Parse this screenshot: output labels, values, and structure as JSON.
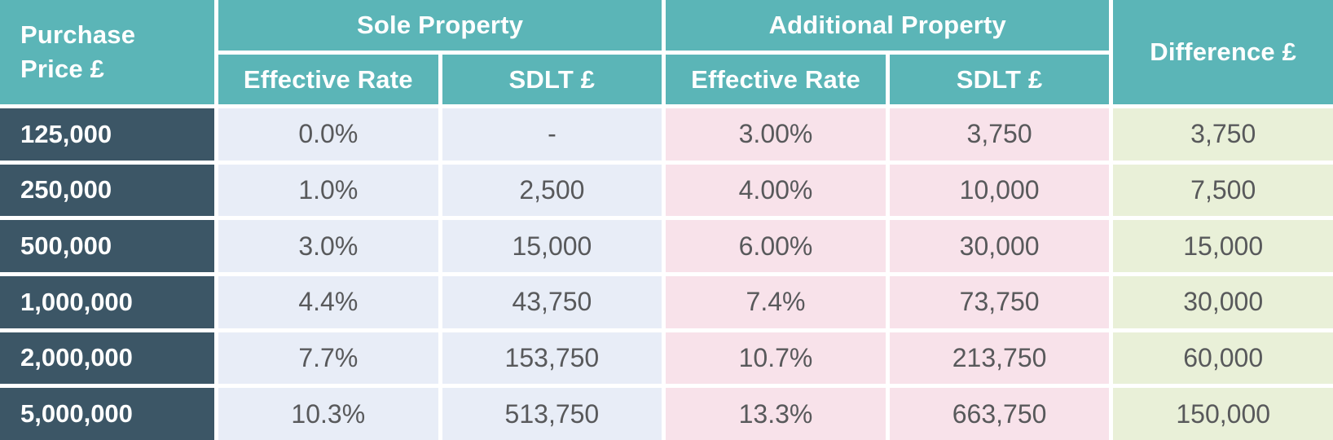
{
  "colors": {
    "header_teal": "#5bb5b7",
    "price_column_dark": "#3c5666",
    "sole_property_bg": "#e8edf7",
    "additional_property_bg": "#f8e2ea",
    "difference_bg": "#e9f0d8",
    "grid_lines": "#ffffff",
    "header_text": "#ffffff",
    "data_text": "#58595b"
  },
  "chart_data": {
    "type": "table",
    "header": {
      "purchase_price": "Purchase\nPrice £",
      "groups": [
        {
          "label": "Sole Property",
          "sub": [
            "Effective Rate",
            "SDLT £"
          ]
        },
        {
          "label": "Additional Property",
          "sub": [
            "Effective Rate",
            "SDLT £"
          ]
        }
      ],
      "difference": "Difference £"
    },
    "rows": [
      {
        "price": "125,000",
        "sole_rate": "0.0%",
        "sole_sdlt": "-",
        "additional_rate": "3.00%",
        "additional_sdlt": "3,750",
        "difference": "3,750"
      },
      {
        "price": "250,000",
        "sole_rate": "1.0%",
        "sole_sdlt": "2,500",
        "additional_rate": "4.00%",
        "additional_sdlt": "10,000",
        "difference": "7,500"
      },
      {
        "price": "500,000",
        "sole_rate": "3.0%",
        "sole_sdlt": "15,000",
        "additional_rate": "6.00%",
        "additional_sdlt": "30,000",
        "difference": "15,000"
      },
      {
        "price": "1,000,000",
        "sole_rate": "4.4%",
        "sole_sdlt": "43,750",
        "additional_rate": "7.4%",
        "additional_sdlt": "73,750",
        "difference": "30,000"
      },
      {
        "price": "2,000,000",
        "sole_rate": "7.7%",
        "sole_sdlt": "153,750",
        "additional_rate": "10.7%",
        "additional_sdlt": "213,750",
        "difference": "60,000"
      },
      {
        "price": "5,000,000",
        "sole_rate": "10.3%",
        "sole_sdlt": "513,750",
        "additional_rate": "13.3%",
        "additional_sdlt": "663,750",
        "difference": "150,000"
      }
    ]
  }
}
